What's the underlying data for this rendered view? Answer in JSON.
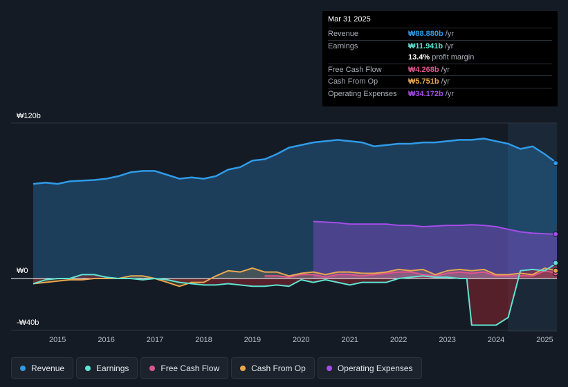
{
  "tooltip": {
    "date": "Mar 31 2025",
    "revenue": {
      "label": "Revenue",
      "value": "₩88.880b",
      "unit": "/yr",
      "color": "#2f9be8"
    },
    "earnings": {
      "label": "Earnings",
      "value": "₩11.941b",
      "unit": "/yr",
      "color": "#5fe3d2"
    },
    "margin": {
      "value": "13.4%",
      "text": "profit margin"
    },
    "fcf": {
      "label": "Free Cash Flow",
      "value": "₩4.268b",
      "unit": "/yr",
      "color": "#e0558e"
    },
    "cfo": {
      "label": "Cash From Op",
      "value": "₩5.751b",
      "unit": "/yr",
      "color": "#e9a84e"
    },
    "opex": {
      "label": "Operating Expenses",
      "value": "₩34.172b",
      "unit": "/yr",
      "color": "#a44de8"
    }
  },
  "legend": [
    {
      "label": "Revenue",
      "color": "#2f9be8"
    },
    {
      "label": "Earnings",
      "color": "#5fe3d2"
    },
    {
      "label": "Free Cash Flow",
      "color": "#e0558e"
    },
    {
      "label": "Cash From Op",
      "color": "#e9a84e"
    },
    {
      "label": "Operating Expenses",
      "color": "#a44de8"
    }
  ],
  "chart_data": {
    "type": "area",
    "title": "",
    "y_axis_labels": [
      "₩120b",
      "₩0",
      "-₩40b"
    ],
    "ylim": [
      -40,
      120
    ],
    "xlim": [
      2014.5,
      2025.25
    ],
    "x_ticks": [
      "2015",
      "2016",
      "2017",
      "2018",
      "2019",
      "2020",
      "2021",
      "2022",
      "2023",
      "2024",
      "2025"
    ],
    "x_tick_values": [
      2015,
      2016,
      2017,
      2018,
      2019,
      2020,
      2021,
      2022,
      2023,
      2024,
      2025
    ],
    "forecast_start": 2024.25,
    "series": [
      {
        "name": "Revenue",
        "color": "#2f9be8",
        "x": [
          2014.5,
          2014.75,
          2015.0,
          2015.25,
          2015.5,
          2015.75,
          2016.0,
          2016.25,
          2016.5,
          2016.75,
          2017.0,
          2017.25,
          2017.5,
          2017.75,
          2018.0,
          2018.25,
          2018.5,
          2018.75,
          2019.0,
          2019.25,
          2019.5,
          2019.75,
          2020.0,
          2020.25,
          2020.5,
          2020.75,
          2021.0,
          2021.25,
          2021.5,
          2021.75,
          2022.0,
          2022.25,
          2022.5,
          2022.75,
          2023.0,
          2023.25,
          2023.5,
          2023.75,
          2024.0,
          2024.25,
          2024.5,
          2024.75,
          2025.0,
          2025.25
        ],
        "values": [
          73,
          74,
          73,
          75,
          75.5,
          76,
          77,
          79,
          82,
          83,
          83,
          80,
          77,
          78,
          77,
          79,
          84,
          86,
          91,
          92,
          96,
          101,
          103,
          105,
          106,
          107,
          106,
          105,
          102,
          103,
          104,
          104,
          105,
          105,
          106,
          107,
          107,
          108,
          106,
          104,
          100,
          102,
          96,
          89
        ]
      },
      {
        "name": "Earnings",
        "color": "#5fe3d2",
        "x": [
          2014.5,
          2014.75,
          2015.0,
          2015.25,
          2015.5,
          2015.75,
          2016.0,
          2016.25,
          2016.5,
          2016.75,
          2017.0,
          2017.25,
          2017.5,
          2017.75,
          2018.0,
          2018.25,
          2018.5,
          2018.75,
          2019.0,
          2019.25,
          2019.5,
          2019.75,
          2020.0,
          2020.25,
          2020.5,
          2020.75,
          2021.0,
          2021.25,
          2021.5,
          2021.75,
          2022.0,
          2022.25,
          2022.5,
          2022.75,
          2023.0,
          2023.25,
          2023.4,
          2023.5,
          2023.75,
          2024.0,
          2024.25,
          2024.5,
          2024.75,
          2025.0,
          2025.25
        ],
        "values": [
          -4,
          -1,
          0,
          0,
          3,
          3,
          1,
          0,
          0,
          -1,
          0,
          -1,
          -3,
          -4,
          -5,
          -5,
          -4,
          -5,
          -6,
          -6,
          -5,
          -6,
          -1,
          -3,
          -1,
          -3,
          -5,
          -3,
          -3,
          -3,
          0,
          1,
          2,
          1,
          1,
          0,
          0,
          -36,
          -36,
          -36,
          -30,
          6,
          7,
          6,
          12
        ]
      },
      {
        "name": "Free Cash Flow",
        "color": "#e0558e",
        "x": [
          2019.25,
          2019.5,
          2019.75,
          2020.0,
          2020.25,
          2020.5,
          2020.75,
          2021.0,
          2021.25,
          2021.5,
          2021.75,
          2022.0,
          2022.25,
          2022.5,
          2022.75,
          2023.0,
          2023.25,
          2023.5,
          2023.75,
          2024.0,
          2024.25,
          2024.5,
          2024.75,
          2025.0,
          2025.25
        ],
        "values": [
          2,
          2,
          1,
          3,
          3,
          1,
          3,
          3,
          2,
          3,
          4,
          5,
          5,
          3,
          2,
          4,
          5,
          4,
          5,
          2,
          2,
          2,
          2,
          6,
          4
        ]
      },
      {
        "name": "Cash From Op",
        "color": "#e9a84e",
        "x": [
          2014.5,
          2014.75,
          2015.0,
          2015.25,
          2015.5,
          2015.75,
          2016.0,
          2016.25,
          2016.5,
          2016.75,
          2017.0,
          2017.25,
          2017.5,
          2017.75,
          2018.0,
          2018.25,
          2018.5,
          2018.75,
          2019.0,
          2019.25,
          2019.5,
          2019.75,
          2020.0,
          2020.25,
          2020.5,
          2020.75,
          2021.0,
          2021.25,
          2021.5,
          2021.75,
          2022.0,
          2022.25,
          2022.5,
          2022.75,
          2023.0,
          2023.25,
          2023.5,
          2023.75,
          2024.0,
          2024.25,
          2024.5,
          2024.75,
          2025.0,
          2025.25
        ],
        "values": [
          -4,
          -3,
          -2,
          -1,
          -1,
          0,
          0,
          0,
          2,
          2,
          0,
          -3,
          -6,
          -3,
          -3,
          2,
          6,
          5,
          8,
          5,
          5,
          2,
          4,
          5,
          3,
          5,
          5,
          4,
          4,
          5,
          7,
          6,
          7,
          3,
          6,
          7,
          6,
          7,
          3,
          3,
          4,
          3,
          8,
          6
        ]
      },
      {
        "name": "Operating Expenses",
        "color": "#a44de8",
        "x": [
          2020.25,
          2020.5,
          2020.75,
          2021.0,
          2021.25,
          2021.5,
          2021.75,
          2022.0,
          2022.25,
          2022.5,
          2022.75,
          2023.0,
          2023.25,
          2023.5,
          2023.75,
          2024.0,
          2024.25,
          2024.5,
          2024.75,
          2025.0,
          2025.25
        ],
        "values": [
          44,
          43.5,
          43,
          42,
          42,
          42,
          42,
          41,
          41,
          40,
          40.5,
          41,
          41,
          41.5,
          41,
          40,
          38,
          36,
          35,
          34.5,
          34.2
        ]
      }
    ]
  }
}
